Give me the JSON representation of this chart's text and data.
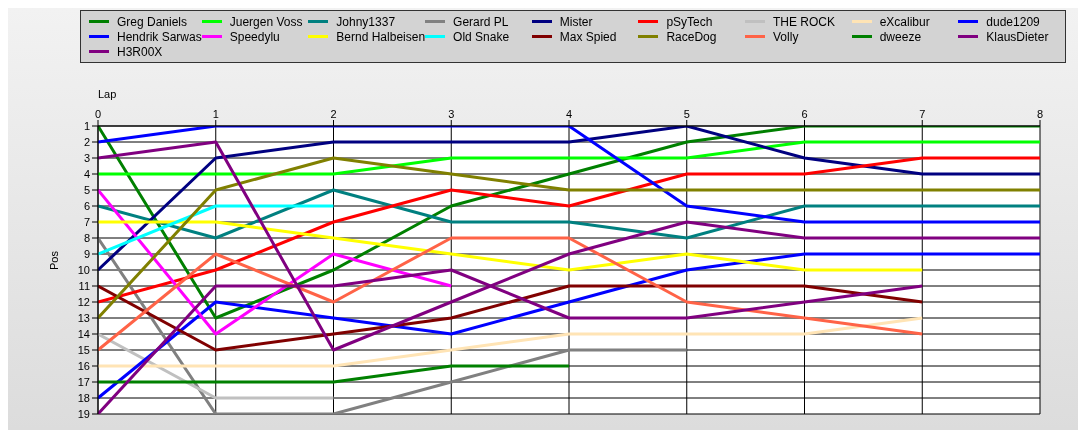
{
  "chart_data": {
    "type": "line",
    "xlabel": "Lap",
    "ylabel": "Pos",
    "x": [
      0,
      1,
      2,
      3,
      4,
      5,
      6,
      7,
      8
    ],
    "xlim": [
      0,
      8
    ],
    "xticks": [
      0,
      1,
      2,
      3,
      4,
      5,
      6,
      7,
      8
    ],
    "ylim": [
      19,
      1
    ],
    "yticks": [
      1,
      2,
      3,
      4,
      5,
      6,
      7,
      8,
      9,
      10,
      11,
      12,
      13,
      14,
      15,
      16,
      17,
      18,
      19
    ],
    "grid": true,
    "legend": "top",
    "series": [
      {
        "name": "Greg Daniels",
        "color": "#008000",
        "values": [
          1,
          13,
          10,
          6,
          4,
          2,
          1,
          1,
          1
        ]
      },
      {
        "name": "Juergen Voss",
        "color": "#00ff00",
        "values": [
          4,
          4,
          4,
          3,
          3,
          3,
          2,
          2,
          2
        ]
      },
      {
        "name": "Johny1337",
        "color": "#008080",
        "values": [
          6,
          8,
          5,
          7,
          7,
          8,
          6,
          6,
          6
        ]
      },
      {
        "name": "Gerard PL",
        "color": "#808080",
        "values": [
          8,
          19,
          19,
          17,
          15,
          15,
          null,
          null,
          null
        ]
      },
      {
        "name": "Mister",
        "color": "#000080",
        "values": [
          10,
          3,
          2,
          2,
          2,
          1,
          3,
          4,
          4
        ]
      },
      {
        "name": "pSyTech",
        "color": "#ff0000",
        "values": [
          12,
          10,
          7,
          5,
          6,
          4,
          4,
          3,
          3
        ]
      },
      {
        "name": "THE ROCK",
        "color": "#c0c0c0",
        "values": [
          14,
          18,
          18,
          null,
          null,
          null,
          null,
          null,
          null
        ]
      },
      {
        "name": "eXcalibur",
        "color": "#ffe4b5",
        "values": [
          16,
          16,
          16,
          15,
          14,
          14,
          14,
          13,
          null
        ]
      },
      {
        "name": "dude1209",
        "color": "#0000ff",
        "values": [
          2,
          1,
          1,
          1,
          1,
          6,
          7,
          7,
          7
        ]
      },
      {
        "name": "Hendrik Sarwas",
        "color": "#0000ff",
        "values": [
          18,
          12,
          13,
          14,
          12,
          10,
          9,
          9,
          9
        ]
      },
      {
        "name": "Speedylu",
        "color": "#ff00ff",
        "values": [
          5,
          14,
          9,
          11,
          null,
          null,
          null,
          null,
          null
        ]
      },
      {
        "name": "Bernd Halbeisen",
        "color": "#ffff00",
        "values": [
          7,
          7,
          8,
          9,
          10,
          9,
          10,
          10,
          null
        ]
      },
      {
        "name": "Old Snake",
        "color": "#00ffff",
        "values": [
          9,
          6,
          6,
          null,
          null,
          null,
          null,
          null,
          null
        ]
      },
      {
        "name": "Max Spied",
        "color": "#800000",
        "values": [
          11,
          15,
          14,
          13,
          11,
          11,
          11,
          12,
          null
        ]
      },
      {
        "name": "RaceDog",
        "color": "#808000",
        "values": [
          13,
          5,
          3,
          4,
          5,
          5,
          5,
          5,
          5
        ]
      },
      {
        "name": "Volly",
        "color": "#ff6347",
        "values": [
          15,
          9,
          12,
          8,
          8,
          12,
          13,
          14,
          null
        ]
      },
      {
        "name": "dweeze",
        "color": "#008000",
        "values": [
          17,
          17,
          17,
          16,
          16,
          null,
          null,
          null,
          null
        ]
      },
      {
        "name": "KlausDieter",
        "color": "#800080",
        "values": [
          3,
          2,
          15,
          12,
          9,
          7,
          8,
          8,
          8
        ]
      },
      {
        "name": "H3R00X",
        "color": "#800080",
        "values": [
          19,
          11,
          11,
          10,
          13,
          13,
          12,
          11,
          null
        ]
      }
    ]
  }
}
